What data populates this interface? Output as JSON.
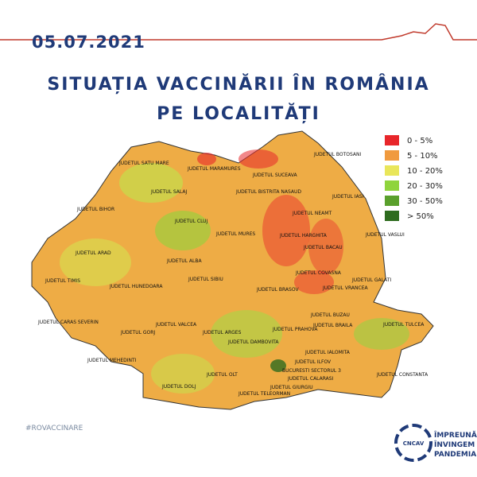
{
  "date": "05.07.2021",
  "title": [
    "SITUAȚIA VACCINĂRII ÎN ROMÂNIA",
    "PE LOCALITĂȚI"
  ],
  "legend": [
    {
      "label": "0 - 5%",
      "color": "#e8262a"
    },
    {
      "label": "5 - 10%",
      "color": "#f09a3e"
    },
    {
      "label": "10 - 20%",
      "color": "#e9e65a"
    },
    {
      "label": "20 - 30%",
      "color": "#8fd43c"
    },
    {
      "label": "30 - 50%",
      "color": "#5aa02c"
    },
    {
      "label": "> 50%",
      "color": "#2e6b1e"
    }
  ],
  "counties": [
    "JUDETUL SATU MARE",
    "JUDETUL MARAMURES",
    "JUDETUL BOTOSANI",
    "JUDETUL SUCEAVA",
    "JUDETUL BISTRITA NASAUD",
    "JUDETUL SALAJ",
    "JUDETUL IASI",
    "JUDETUL BIHOR",
    "JUDETUL CLUJ",
    "JUDETUL NEAMT",
    "JUDETUL MURES",
    "JUDETUL HARGHITA",
    "JUDETUL VASLUI",
    "JUDETUL BACAU",
    "JUDETUL ARAD",
    "JUDETUL ALBA",
    "JUDETUL COVASNA",
    "JUDETUL TIMIS",
    "JUDETUL HUNEDOARA",
    "JUDETUL SIBIU",
    "JUDETUL BRASOV",
    "JUDETUL GALATI",
    "JUDETUL VRANCEA",
    "JUDETUL CARAS SEVERIN",
    "JUDETUL VALCEA",
    "JUDETUL BUZAU",
    "JUDETUL BRAILA",
    "JUDETUL TULCEA",
    "JUDETUL GORJ",
    "JUDETUL ARGES",
    "JUDETUL PRAHOVA",
    "JUDETUL DAMBOVITA",
    "JUDETUL IALOMITA",
    "JUDETUL MEHEDINTI",
    "JUDETUL ILFOV",
    "BUCURESTI SECTORUL 3",
    "JUDETUL CONSTANTA",
    "JUDETUL CALARASI",
    "JUDETUL GIURGIU",
    "JUDETUL DOLJ",
    "JUDETUL OLT",
    "JUDETUL TELEORMAN"
  ],
  "hashtag": "#ROVACCINARE",
  "logo": {
    "mark": "CNCAV",
    "lines": [
      "ÎMPREUNĂ",
      "ÎNVINGEM",
      "PANDEMIA"
    ]
  }
}
